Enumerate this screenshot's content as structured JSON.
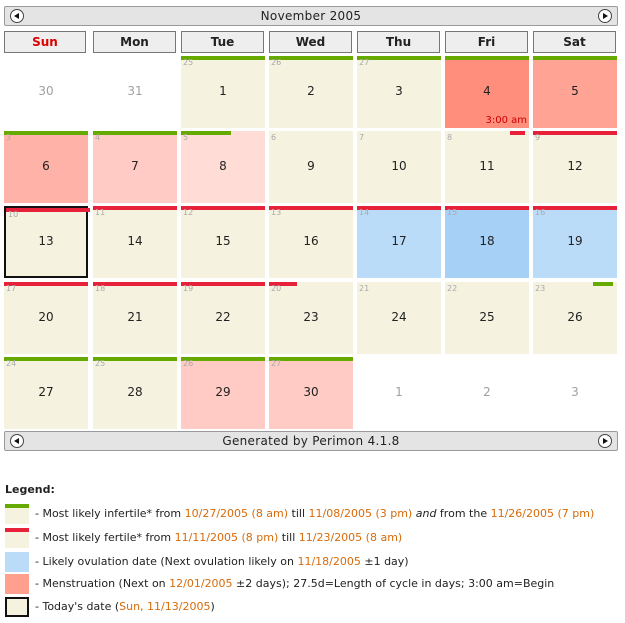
{
  "header": {
    "title": "November 2005",
    "prev_label": "previous month",
    "next_label": "next month"
  },
  "weekdays": [
    "Sun",
    "Mon",
    "Tue",
    "Wed",
    "Thu",
    "Fri",
    "Sat"
  ],
  "colors": {
    "infertile_cell": "#f5f2e0",
    "fertile_cell": "#ffdad5",
    "ovulation": "#bbdcf8",
    "ovulation_dark": "#a7d0f6",
    "menstruation": "#ff9f8e",
    "menstruation_dark": "#ff8f7c",
    "infertile_bar": "#66aa00",
    "fertile_bar": "#e8213a",
    "sunday": "#dd0000"
  },
  "weeks": [
    [
      {
        "day": "30",
        "out": true
      },
      {
        "day": "31",
        "out": true
      },
      {
        "day": "1",
        "cycle": "25",
        "bg": "#f5f2e0",
        "bar": "#66aa00",
        "barw": 1
      },
      {
        "day": "2",
        "cycle": "26",
        "bg": "#f5f2e0",
        "bar": "#66aa00",
        "barw": 1
      },
      {
        "day": "3",
        "cycle": "27",
        "bg": "#f5f2e0",
        "bar": "#66aa00",
        "barw": 1
      },
      {
        "day": "4",
        "bg": "#ff8f7c",
        "bar": "#66aa00",
        "barw": 1,
        "note": "3:00 am"
      },
      {
        "day": "5",
        "bg": "#ffa494",
        "bar": "#66aa00",
        "barw": 1
      }
    ],
    [
      {
        "day": "6",
        "cycle": "3",
        "bg": "#ffb2a7",
        "bar": "#66aa00",
        "barw": 1
      },
      {
        "day": "7",
        "cycle": "4",
        "bg": "#ffcbc4",
        "bar": "#66aa00",
        "barw": 1
      },
      {
        "day": "8",
        "cycle": "5",
        "bg": "#ffdcd6",
        "bar": "#66aa00",
        "barw": 0.6
      },
      {
        "day": "9",
        "cycle": "6",
        "bg": "#f5f2e0"
      },
      {
        "day": "10",
        "cycle": "7",
        "bg": "#f5f2e0"
      },
      {
        "day": "11",
        "cycle": "8",
        "bg": "#f5f2e0",
        "bar": "#e8213a",
        "barw": 0.18,
        "barRight": true
      },
      {
        "day": "12",
        "cycle": "9",
        "bg": "#f5f2e0",
        "bar": "#e8213a",
        "barw": 1
      }
    ],
    [
      {
        "day": "13",
        "cycle": "10",
        "bg": "#f5f2e0",
        "bar": "#e8213a",
        "barw": 1,
        "today": true
      },
      {
        "day": "14",
        "cycle": "11",
        "bg": "#f5f2e0",
        "bar": "#e8213a",
        "barw": 1
      },
      {
        "day": "15",
        "cycle": "12",
        "bg": "#f5f2e0",
        "bar": "#e8213a",
        "barw": 1
      },
      {
        "day": "16",
        "cycle": "13",
        "bg": "#f5f2e0",
        "bar": "#e8213a",
        "barw": 1
      },
      {
        "day": "17",
        "cycle": "14",
        "bg": "#bbdcf8",
        "bar": "#e8213a",
        "barw": 1
      },
      {
        "day": "18",
        "cycle": "15",
        "bg": "#a7d0f6",
        "bar": "#e8213a",
        "barw": 1
      },
      {
        "day": "19",
        "cycle": "16",
        "bg": "#bbdcf8",
        "bar": "#e8213a",
        "barw": 1
      }
    ],
    [
      {
        "day": "20",
        "cycle": "17",
        "bg": "#f5f2e0",
        "bar": "#e8213a",
        "barw": 1
      },
      {
        "day": "21",
        "cycle": "18",
        "bg": "#f5f2e0",
        "bar": "#e8213a",
        "barw": 1
      },
      {
        "day": "22",
        "cycle": "19",
        "bg": "#f5f2e0",
        "bar": "#e8213a",
        "barw": 1
      },
      {
        "day": "23",
        "cycle": "20",
        "bg": "#f5f2e0",
        "bar": "#e8213a",
        "barw": 0.33
      },
      {
        "day": "24",
        "cycle": "21",
        "bg": "#f5f2e0"
      },
      {
        "day": "25",
        "cycle": "22",
        "bg": "#f5f2e0"
      },
      {
        "day": "26",
        "cycle": "23",
        "bg": "#f5f2e0",
        "bar": "#66aa00",
        "barw": 0.24,
        "barRight": true
      }
    ],
    [
      {
        "day": "27",
        "cycle": "24",
        "bg": "#f5f2e0",
        "bar": "#66aa00",
        "barw": 1
      },
      {
        "day": "28",
        "cycle": "25",
        "bg": "#f5f2e0",
        "bar": "#66aa00",
        "barw": 1
      },
      {
        "day": "29",
        "cycle": "26",
        "bg": "#ffcbc4",
        "bar": "#66aa00",
        "barw": 1
      },
      {
        "day": "30",
        "cycle": "27",
        "bg": "#ffcbc4",
        "bar": "#66aa00",
        "barw": 1
      },
      {
        "day": "1",
        "out": true
      },
      {
        "day": "2",
        "out": true
      },
      {
        "day": "3",
        "out": true
      }
    ]
  ],
  "footer": {
    "text": "Generated by Perimon 4.1.8"
  },
  "legend": {
    "title": "Legend:",
    "infertile": {
      "t1": "- Most likely infertile* from ",
      "d1": "10/27/2005 (8 am)",
      "t2": " till ",
      "d2": "11/08/2005 (3 pm)",
      "t3": " and",
      "t4": " from the ",
      "d3": "11/26/2005 (7 pm)"
    },
    "fertile": {
      "t1": "- Most likely fertile* from ",
      "d1": "11/11/2005 (8 pm)",
      "t2": " till ",
      "d2": "11/23/2005 (8 am)"
    },
    "ovulation": {
      "t1": "- Likely ovulation date (Next ovulation likely on ",
      "d1": "11/18/2005",
      "t2": " ±1 day)"
    },
    "menstruation": {
      "t1": "- Menstruation (Next on ",
      "d1": "12/01/2005",
      "t2": " ±2 days); 27.5d=Length of cycle in days; 3:00 am=Begin"
    },
    "today": {
      "t1": "- Today's date (",
      "d1": "Sun, 11/13/2005",
      "t2": ")"
    }
  }
}
